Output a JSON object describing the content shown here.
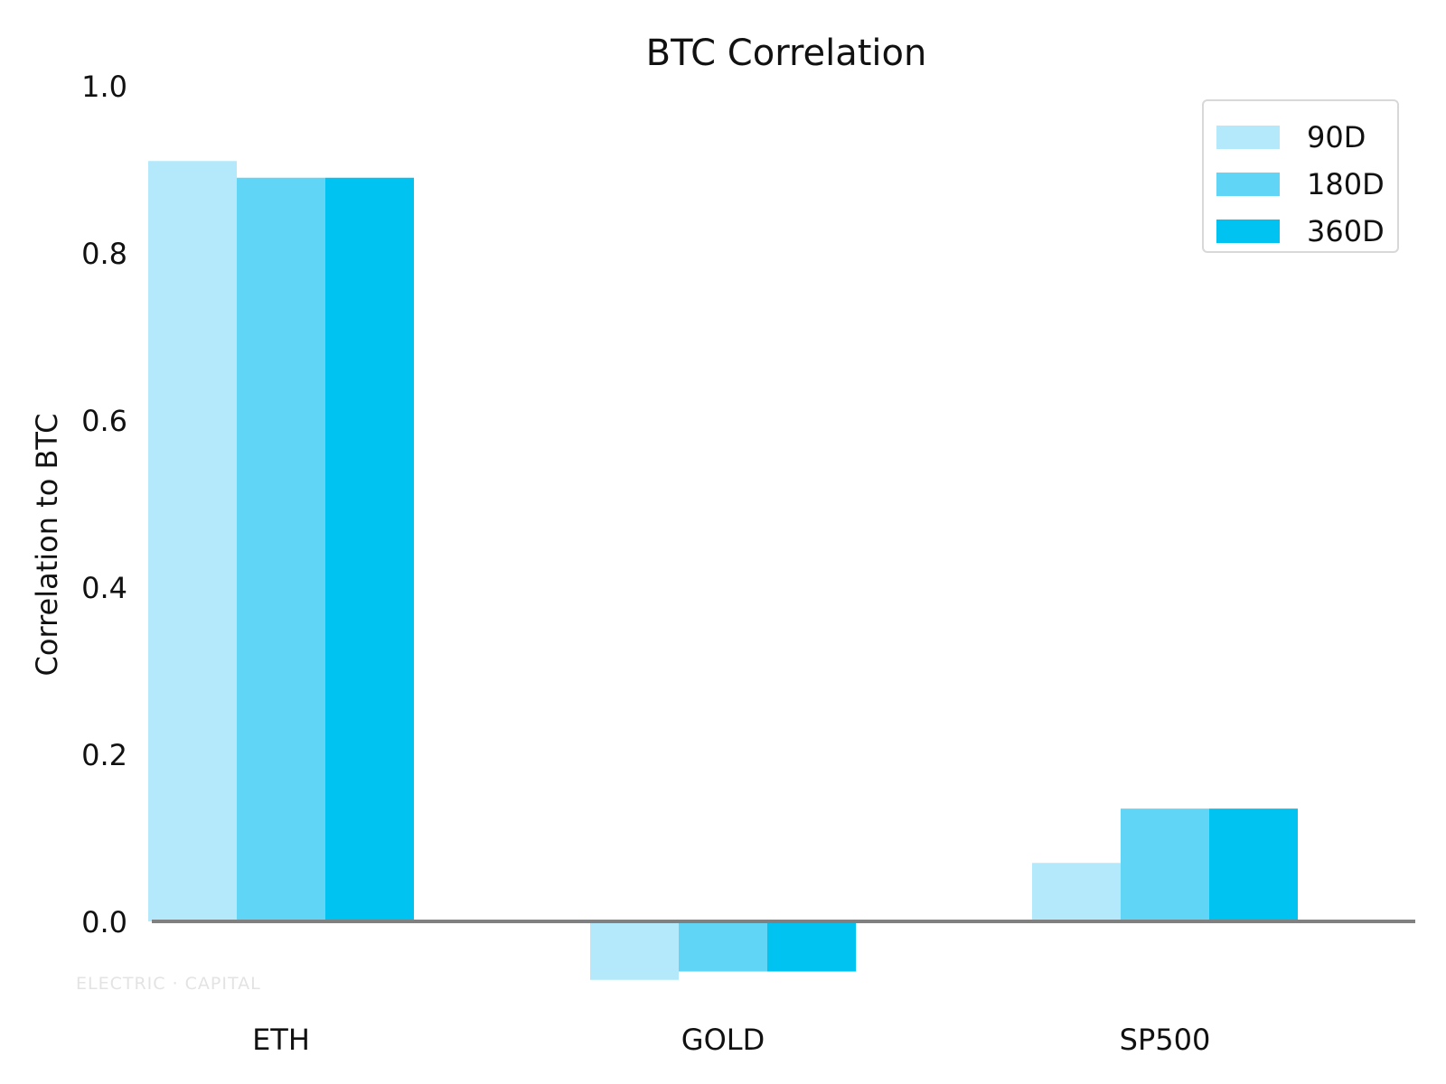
{
  "chart_data": {
    "type": "bar",
    "title": "BTC Correlation",
    "xlabel": "",
    "ylabel": "Correlation to BTC",
    "categories": [
      "ETH",
      "GOLD",
      "SP500"
    ],
    "series": [
      {
        "name": "90D",
        "color": "#b3e9fa",
        "values": [
          0.91,
          -0.07,
          0.07
        ]
      },
      {
        "name": "180D",
        "color": "#60d5f6",
        "values": [
          0.89,
          -0.06,
          0.135
        ]
      },
      {
        "name": "360D",
        "color": "#00c3f2",
        "values": [
          0.89,
          -0.06,
          0.135
        ]
      }
    ],
    "ylim": [
      0.0,
      1.0
    ],
    "yticks": [
      "0.0",
      "0.2",
      "0.4",
      "0.6",
      "0.8",
      "1.0"
    ],
    "zero_line_color": "#808080",
    "grid": false,
    "legend_position": "top-right"
  },
  "watermark": "ELECTRIC · CAPITAL"
}
